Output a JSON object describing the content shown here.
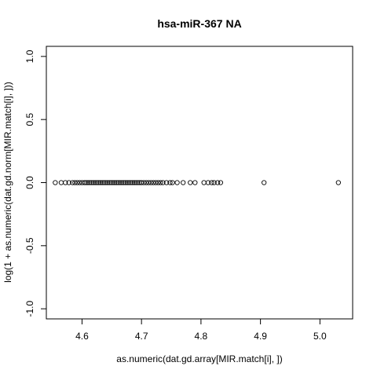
{
  "chart_data": {
    "type": "scatter",
    "title": "hsa-miR-367   NA",
    "xlabel": "as.numeric(dat.gd.array[MIR.match[i], ])",
    "ylabel": "log(1 + as.numeric(dat.gd.norm[MIR.match[i], ]))",
    "xlim": [
      4.54,
      5.055
    ],
    "ylim": [
      -1.08,
      1.08
    ],
    "x_ticks": [
      4.6,
      4.7,
      4.8,
      4.9,
      5.0
    ],
    "x_tick_labels": [
      "4.6",
      "4.7",
      "4.8",
      "4.9",
      "5.0"
    ],
    "y_ticks": [
      -1.0,
      -0.5,
      0.0,
      0.5,
      1.0
    ],
    "y_tick_labels": [
      "-1.0",
      "-0.5",
      "0.0",
      "0.5",
      "1.0"
    ],
    "grid": false,
    "legend": "none",
    "marker": "open-circle",
    "x": [
      4.555,
      4.565,
      4.572,
      4.578,
      4.584,
      4.588,
      4.592,
      4.596,
      4.6,
      4.604,
      4.607,
      4.61,
      4.613,
      4.616,
      4.619,
      4.622,
      4.625,
      4.628,
      4.631,
      4.634,
      4.637,
      4.64,
      4.643,
      4.646,
      4.649,
      4.652,
      4.655,
      4.658,
      4.661,
      4.664,
      4.667,
      4.67,
      4.673,
      4.676,
      4.679,
      4.682,
      4.685,
      4.688,
      4.691,
      4.694,
      4.697,
      4.7,
      4.704,
      4.708,
      4.712,
      4.716,
      4.72,
      4.724,
      4.728,
      4.732,
      4.736,
      4.742,
      4.748,
      4.752,
      4.76,
      4.77,
      4.782,
      4.79,
      4.805,
      4.812,
      4.818,
      4.822,
      4.828,
      4.833,
      4.906,
      5.031
    ],
    "y": [
      0,
      0,
      0,
      0,
      0,
      0,
      0,
      0,
      0,
      0,
      0,
      0,
      0,
      0,
      0,
      0,
      0,
      0,
      0,
      0,
      0,
      0,
      0,
      0,
      0,
      0,
      0,
      0,
      0,
      0,
      0,
      0,
      0,
      0,
      0,
      0,
      0,
      0,
      0,
      0,
      0,
      0,
      0,
      0,
      0,
      0,
      0,
      0,
      0,
      0,
      0,
      0,
      0,
      0,
      0,
      0,
      0,
      0,
      0,
      0,
      0,
      0,
      0,
      0,
      0,
      0
    ]
  }
}
